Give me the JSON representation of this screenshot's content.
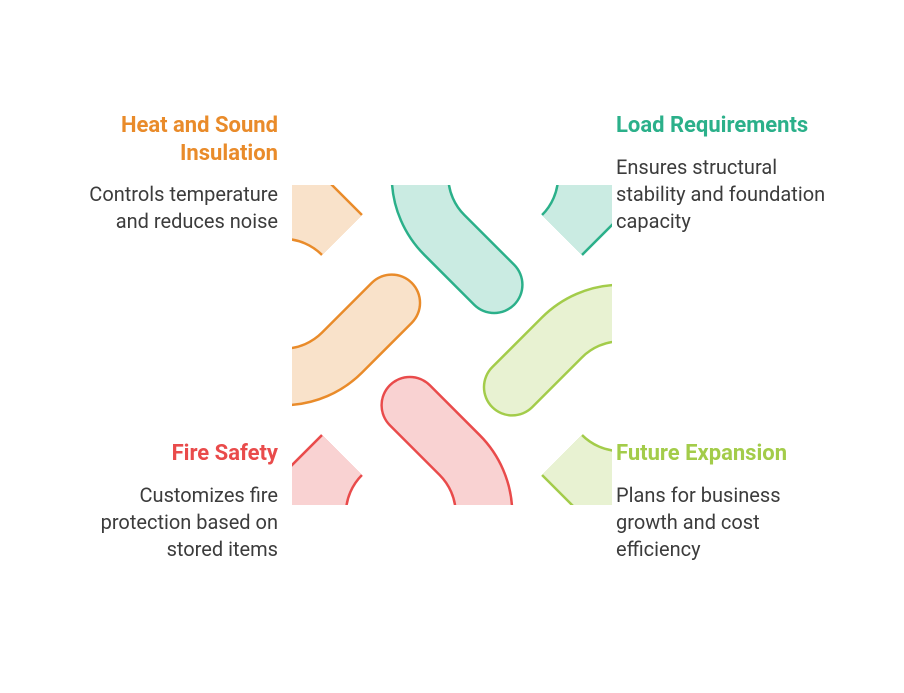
{
  "type": "infographic",
  "background_color": "#ffffff",
  "knot": {
    "size": 320,
    "stroke_width": 54,
    "outline_width": 2.5,
    "fill_opacity": 0.25,
    "colors": {
      "tl": "#e98b2a",
      "tr": "#2bb08a",
      "bl": "#e94b4b",
      "br": "#a3cc4a"
    }
  },
  "title_fontsize": 22,
  "desc_fontsize": 20,
  "desc_color": "#3c3c3c",
  "quadrants": {
    "tl": {
      "title": "Heat and Sound Insulation",
      "desc": "Controls temperature and reduces noise",
      "color": "#e98b2a"
    },
    "tr": {
      "title": "Load Requirements",
      "desc": "Ensures structural stability and foundation capacity",
      "color": "#2bb08a"
    },
    "bl": {
      "title": "Fire Safety",
      "desc": "Customizes fire protection based on stored items",
      "color": "#e94b4b"
    },
    "br": {
      "title": "Future Expansion",
      "desc": "Plans for business growth and cost efficiency",
      "color": "#a3cc4a"
    }
  }
}
